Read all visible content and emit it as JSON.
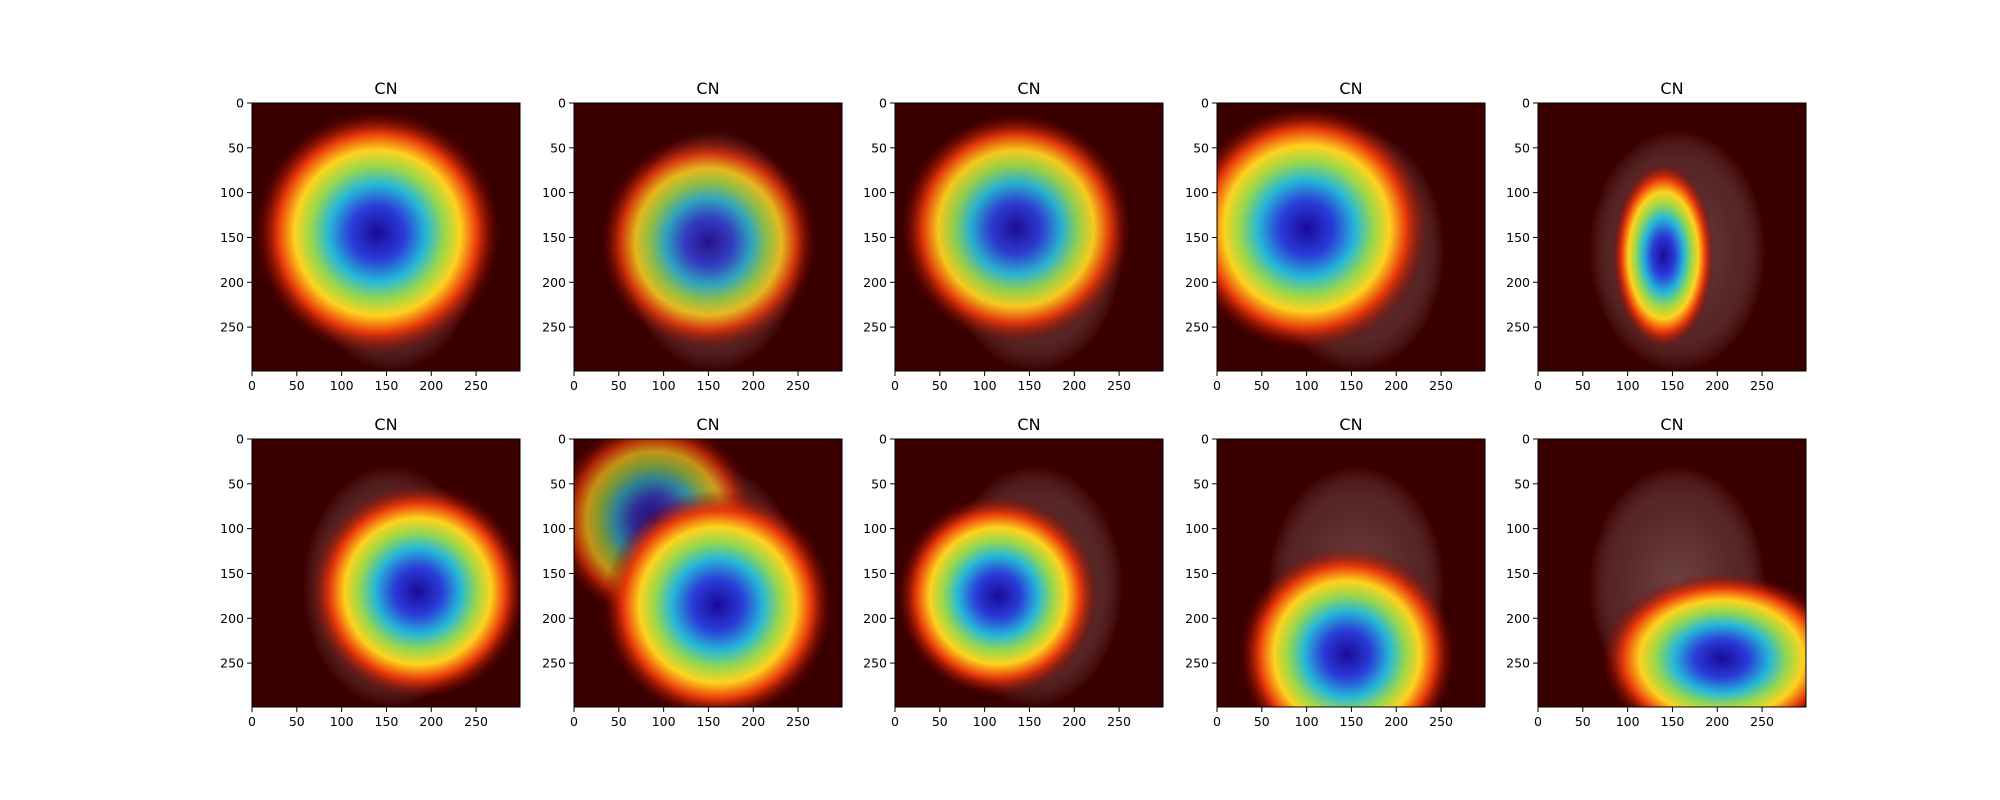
{
  "figure": {
    "rows": 2,
    "cols": 5,
    "x_ticks": [
      "0",
      "50",
      "100",
      "150",
      "200",
      "250"
    ],
    "y_ticks": [
      "0",
      "50",
      "100",
      "150",
      "200",
      "250"
    ],
    "x_tick_values": [
      0,
      50,
      100,
      150,
      200,
      250
    ],
    "y_tick_values": [
      0,
      50,
      100,
      150,
      200,
      250
    ],
    "extent": [
      0,
      299
    ],
    "colors": {
      "background": "#3a0000",
      "hot": "#0000c8",
      "cool": "#7a0000"
    },
    "panels": [
      {
        "title": "CN",
        "hotspots": [
          {
            "cx": 140,
            "cy": 145,
            "r": 85,
            "w": 1.0
          }
        ]
      },
      {
        "title": "CN",
        "hotspots": [
          {
            "cx": 150,
            "cy": 155,
            "r": 75,
            "w": 0.85
          }
        ]
      },
      {
        "title": "CN",
        "hotspots": [
          {
            "cx": 135,
            "cy": 140,
            "r": 80,
            "w": 0.95
          }
        ]
      },
      {
        "title": "CN",
        "hotspots": [
          {
            "cx": 100,
            "cy": 140,
            "r": 85,
            "w": 1.0
          }
        ]
      },
      {
        "title": "CN",
        "hotspots": [
          {
            "cx": 140,
            "cy": 170,
            "r": 65,
            "w": 1.0,
            "sx": 0.55
          }
        ]
      },
      {
        "title": "CN",
        "hotspots": [
          {
            "cx": 185,
            "cy": 170,
            "r": 75,
            "w": 1.0
          }
        ]
      },
      {
        "title": "CN",
        "hotspots": [
          {
            "cx": 90,
            "cy": 90,
            "r": 70,
            "w": 0.7
          },
          {
            "cx": 160,
            "cy": 185,
            "r": 80,
            "w": 1.0
          }
        ]
      },
      {
        "title": "CN",
        "hotspots": [
          {
            "cx": 115,
            "cy": 175,
            "r": 70,
            "w": 1.0
          }
        ]
      },
      {
        "title": "CN",
        "hotspots": [
          {
            "cx": 145,
            "cy": 240,
            "r": 75,
            "w": 1.0
          }
        ]
      },
      {
        "title": "CN",
        "hotspots": [
          {
            "cx": 205,
            "cy": 245,
            "r": 60,
            "w": 1.0,
            "sx": 1.4
          }
        ]
      }
    ]
  }
}
